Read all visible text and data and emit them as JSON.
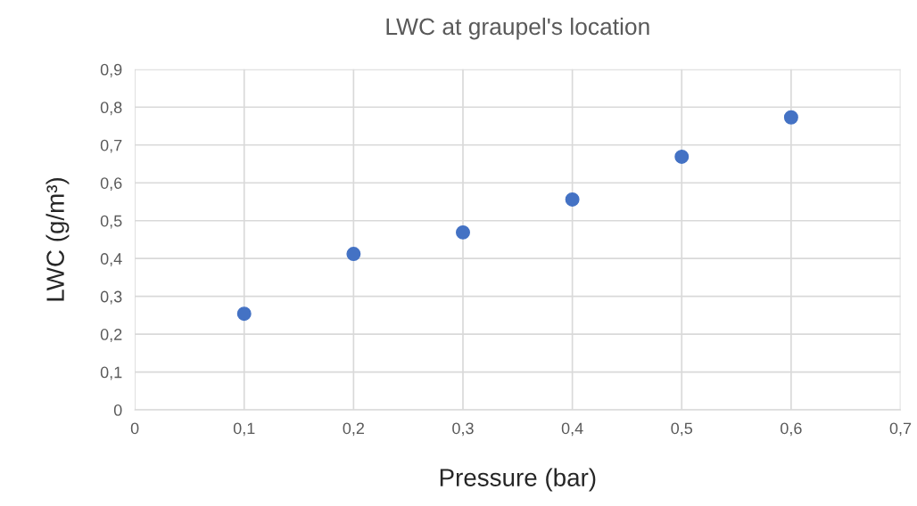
{
  "chart_data": {
    "type": "scatter",
    "title": "LWC at graupel's location",
    "xlabel": "Pressure (bar)",
    "ylabel": "LWC (g/m³)",
    "x": [
      0.1,
      0.2,
      0.3,
      0.4,
      0.5,
      0.6
    ],
    "series": [
      {
        "color": "#4472c4",
        "values": [
          0.254,
          0.412,
          0.469,
          0.556,
          0.669,
          0.773
        ]
      }
    ],
    "xlim": [
      0,
      0.7
    ],
    "ylim": [
      0,
      0.9
    ],
    "xticks": [
      0,
      {
        "value": 0.1,
        "label": "0,1"
      },
      {
        "value": 0.2,
        "label": "0,2"
      },
      {
        "value": 0.3,
        "label": "0,3"
      },
      {
        "value": 0.4,
        "label": "0,4"
      },
      {
        "value": 0.5,
        "label": "0,5"
      },
      {
        "value": 0.6,
        "label": "0,6"
      },
      {
        "value": 0.7,
        "label": "0,7"
      }
    ],
    "yticks": [
      0,
      {
        "value": 0.1,
        "label": "0,1"
      },
      {
        "value": 0.2,
        "label": "0,2"
      },
      {
        "value": 0.3,
        "label": "0,3"
      },
      {
        "value": 0.4,
        "label": "0,4"
      },
      {
        "value": 0.5,
        "label": "0,5"
      },
      {
        "value": 0.6,
        "label": "0,6"
      },
      {
        "value": 0.7,
        "label": "0,7"
      },
      {
        "value": 0.8,
        "label": "0,8"
      },
      {
        "value": 0.9,
        "label": "0,9"
      }
    ],
    "grid": true,
    "marker": "circle",
    "legend": false
  }
}
